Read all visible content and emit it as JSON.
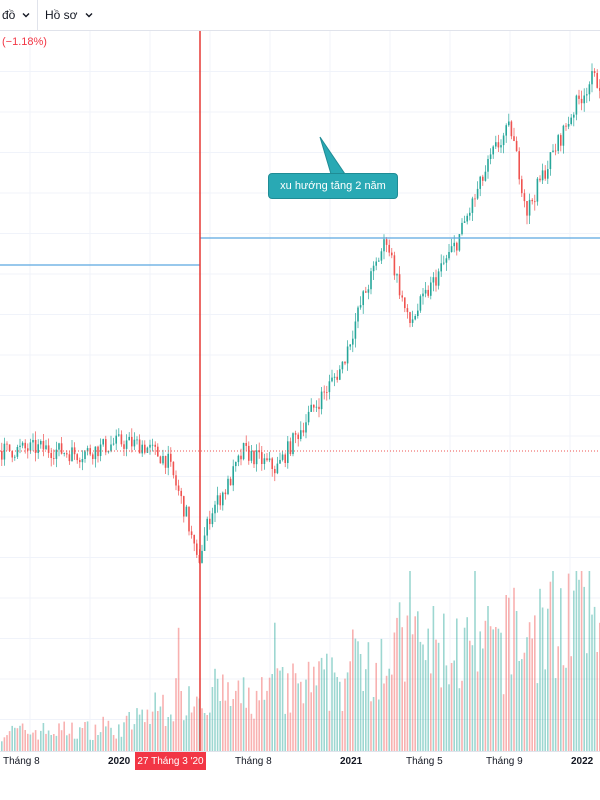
{
  "toolbar": {
    "chart_type_label": "đồ",
    "profile_label": "Hồ sơ"
  },
  "legend": {
    "change_text": "(−1.18%)"
  },
  "annotation": {
    "text": "xu hướng tăng 2 năm"
  },
  "crosshair": {
    "date_label": "27 Tháng 3 '20"
  },
  "colors": {
    "up": "#26a69a",
    "down": "#ef5350",
    "trend_line": "#5ba7e0",
    "crosshair": "#e53935",
    "annotation_bg": "#29a9b4"
  },
  "chart_data": {
    "type": "candlestick",
    "xlabel": "",
    "ylabel": "",
    "x_tick_labels": [
      "Tháng 8",
      "2020",
      "Tháng 8",
      "2021",
      "Tháng 5",
      "Tháng 9",
      "2022"
    ],
    "x_range": [
      "2019-06",
      "2022-02"
    ],
    "grid": true,
    "price_path": [
      [
        "2019-06",
        100
      ],
      [
        "2019-08",
        101
      ],
      [
        "2019-10",
        99
      ],
      [
        "2019-12",
        103
      ],
      [
        "2020-01",
        102
      ],
      [
        "2020-02",
        97
      ],
      [
        "2020-03-10",
        78
      ],
      [
        "2020-03-23",
        62
      ],
      [
        "2020-04",
        80
      ],
      [
        "2020-05",
        88
      ],
      [
        "2020-06",
        100
      ],
      [
        "2020-08",
        94
      ],
      [
        "2020-10",
        112
      ],
      [
        "2020-12",
        128
      ],
      [
        "2021-01",
        150
      ],
      [
        "2021-02",
        171
      ],
      [
        "2021-03",
        142
      ],
      [
        "2021-05",
        170
      ],
      [
        "2021-07",
        200
      ],
      [
        "2021-08",
        208
      ],
      [
        "2021-09",
        180
      ],
      [
        "2021-10",
        192
      ],
      [
        "2021-12",
        215
      ],
      [
        "2022-01",
        224
      ],
      [
        "2022-02",
        222
      ]
    ],
    "volume_path": [
      [
        "2019-06",
        12
      ],
      [
        "2019-12",
        14
      ],
      [
        "2020-03",
        38
      ],
      [
        "2020-06",
        32
      ],
      [
        "2020-12",
        45
      ],
      [
        "2021-01",
        60
      ],
      [
        "2021-03",
        66
      ],
      [
        "2021-06",
        62
      ],
      [
        "2021-09",
        72
      ],
      [
        "2021-12",
        92
      ],
      [
        "2022-02",
        85
      ]
    ],
    "trend_lines": [
      {
        "from": "2019-06",
        "to": "2020-03-27",
        "level": 162
      },
      {
        "from": "2020-03-27",
        "to": "2022-02",
        "level": 171
      }
    ],
    "current_price_level": 100,
    "crosshair_date": "2020-03-27"
  }
}
